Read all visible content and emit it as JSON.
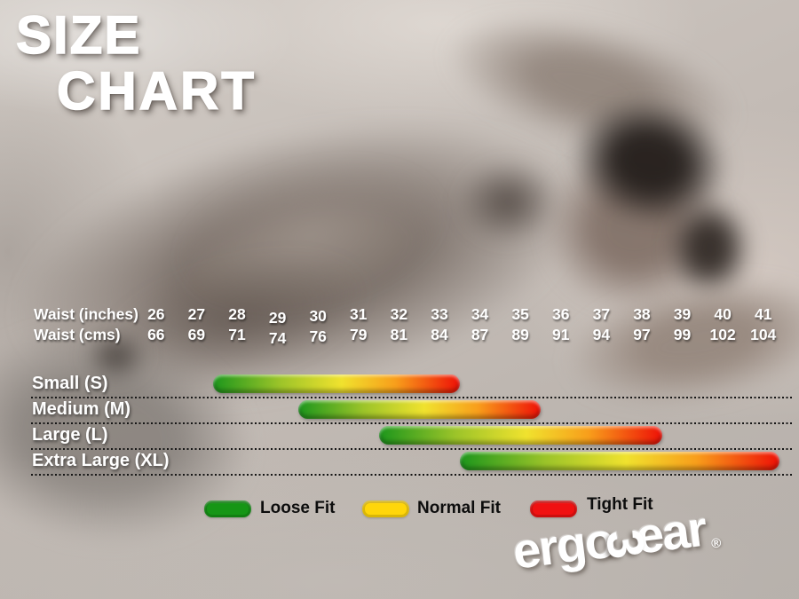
{
  "title": {
    "line1": "SIZE",
    "line2": "CHART"
  },
  "chart_data": {
    "type": "bar",
    "subtype": "horizontal-range-size-chart",
    "title": "SIZE CHART",
    "x_axis": {
      "top_label": "Waist (inches)",
      "bottom_label": "Waist (cms)",
      "min": 26,
      "max": 41,
      "ticks_inches": [
        26,
        27,
        28,
        29,
        30,
        31,
        32,
        33,
        34,
        35,
        36,
        37,
        38,
        39,
        40,
        41
      ],
      "ticks_cms": [
        66,
        69,
        71,
        74,
        76,
        79,
        81,
        84,
        87,
        89,
        91,
        94,
        97,
        99,
        102,
        104
      ]
    },
    "series": [
      {
        "name": "Small (S)",
        "start_inches": 27.4,
        "end_inches": 33.5
      },
      {
        "name": "Medium (M)",
        "start_inches": 29.5,
        "end_inches": 35.5
      },
      {
        "name": "Large (L)",
        "start_inches": 31.5,
        "end_inches": 38.5
      },
      {
        "name": "Extra Large (XL)",
        "start_inches": 33.5,
        "end_inches": 41.4
      }
    ],
    "bar_gradient": [
      "#1c961c",
      "#9cc429",
      "#f0e22e",
      "#f89e1b",
      "#ee1007"
    ],
    "legend": [
      {
        "label": "Loose Fit",
        "color": "#169616"
      },
      {
        "label": "Normal Fit",
        "color": "#ffd60a"
      },
      {
        "label": "Tight Fit",
        "color": "#f01111"
      }
    ],
    "legend_position": "bottom",
    "grid": false
  },
  "brand": {
    "wordmark": "ergowear",
    "wordmark_left": "ergo",
    "w_glyph": "3",
    "wordmark_right": "ear",
    "registered": "®"
  }
}
